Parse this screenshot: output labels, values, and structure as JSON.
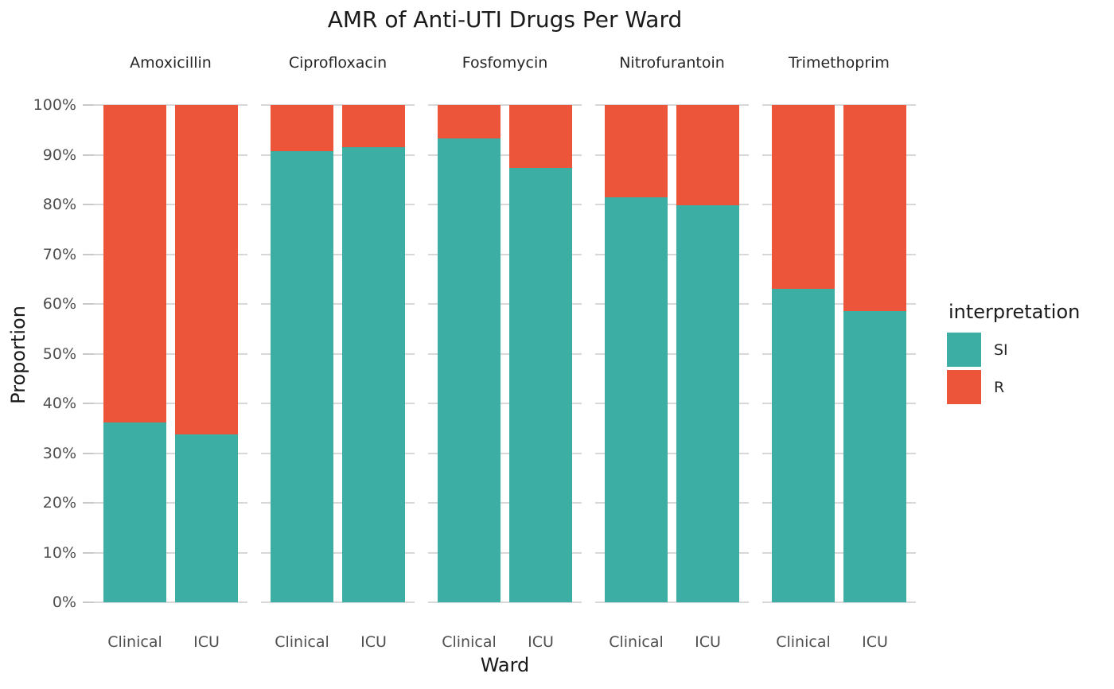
{
  "chart_data": {
    "type": "bar",
    "variant": "stacked-100-percent-faceted",
    "title": "AMR of Anti-UTI Drugs Per Ward",
    "xlabel": "Ward",
    "ylabel": "Proportion",
    "legend_title": "interpretation",
    "legend_position": "right",
    "grid": "horizontal-major-only",
    "series": [
      {
        "name": "SI",
        "color": "#3CAEA3"
      },
      {
        "name": "R",
        "color": "#ED553B"
      }
    ],
    "y_tick_labels": [
      "0%",
      "10%",
      "20%",
      "30%",
      "40%",
      "50%",
      "60%",
      "70%",
      "80%",
      "90%",
      "100%"
    ],
    "ylim_percent": [
      0,
      100
    ],
    "categories": [
      "Clinical",
      "ICU"
    ],
    "facets": [
      {
        "drug": "Amoxicillin",
        "bars": [
          {
            "ward": "Clinical",
            "SI": 36.2,
            "R": 63.8
          },
          {
            "ward": "ICU",
            "SI": 33.7,
            "R": 66.3
          }
        ]
      },
      {
        "drug": "Ciprofloxacin",
        "bars": [
          {
            "ward": "Clinical",
            "SI": 90.7,
            "R": 9.3
          },
          {
            "ward": "ICU",
            "SI": 91.5,
            "R": 8.5
          }
        ]
      },
      {
        "drug": "Fosfomycin",
        "bars": [
          {
            "ward": "Clinical",
            "SI": 93.2,
            "R": 6.8
          },
          {
            "ward": "ICU",
            "SI": 87.4,
            "R": 12.6
          }
        ]
      },
      {
        "drug": "Nitrofurantoin",
        "bars": [
          {
            "ward": "Clinical",
            "SI": 81.4,
            "R": 18.6
          },
          {
            "ward": "ICU",
            "SI": 79.8,
            "R": 20.2
          }
        ]
      },
      {
        "drug": "Trimethoprim",
        "bars": [
          {
            "ward": "Clinical",
            "SI": 63.1,
            "R": 36.9
          },
          {
            "ward": "ICU",
            "SI": 58.5,
            "R": 41.5
          }
        ]
      }
    ]
  }
}
